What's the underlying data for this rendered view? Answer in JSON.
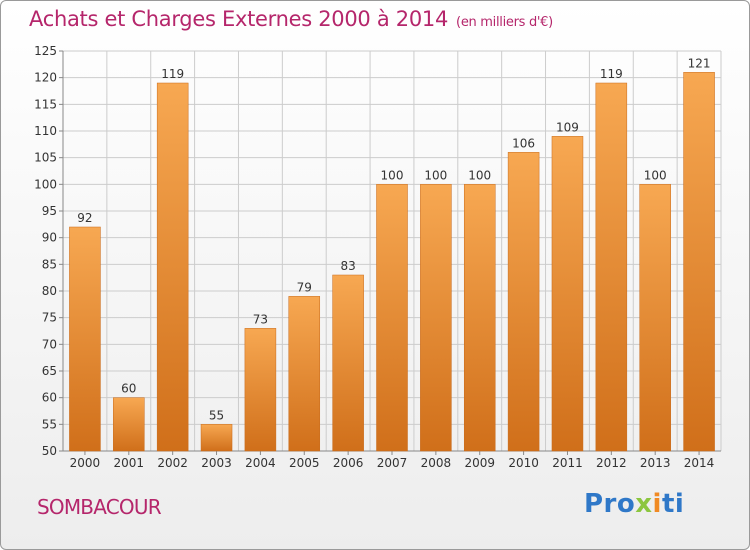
{
  "header": {
    "title": "Achats et Charges Externes 2000 à 2014",
    "subtitle": "(en milliers d'€)"
  },
  "footer": {
    "location": "SOMBACOUR",
    "brand": {
      "part1": "Pro",
      "part2": "x",
      "part3": "i",
      "part4": "ti"
    }
  },
  "colors": {
    "bar_light": "#f7a852",
    "bar_dark": "#d06f1a",
    "title": "#b5266b",
    "grid": "#cccccc"
  },
  "chart_data": {
    "type": "bar",
    "title": "Achats et Charges Externes 2000 à 2014",
    "subtitle": "(en milliers d'€)",
    "xlabel": "",
    "ylabel": "",
    "categories": [
      "2000",
      "2001",
      "2002",
      "2003",
      "2004",
      "2005",
      "2006",
      "2007",
      "2008",
      "2009",
      "2010",
      "2011",
      "2012",
      "2013",
      "2014"
    ],
    "values": [
      92,
      60,
      119,
      55,
      73,
      79,
      83,
      100,
      100,
      100,
      106,
      109,
      119,
      100,
      121
    ],
    "ylim": [
      50,
      125
    ],
    "yticks": [
      50,
      55,
      60,
      65,
      70,
      75,
      80,
      85,
      90,
      95,
      100,
      105,
      110,
      115,
      120,
      125
    ],
    "grid": true,
    "data_labels": true
  }
}
